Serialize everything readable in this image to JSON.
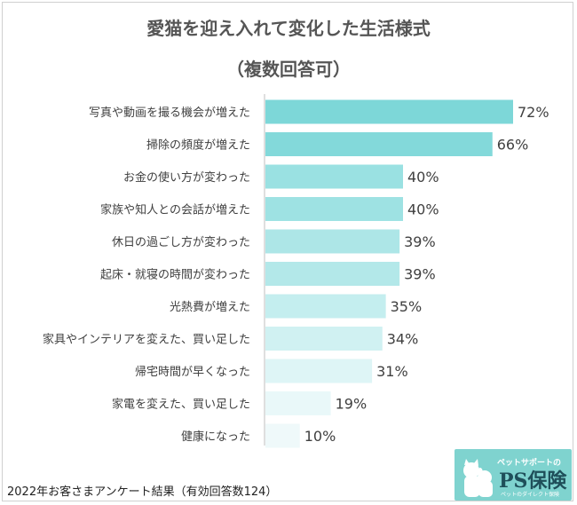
{
  "chart_data": {
    "type": "bar",
    "orientation": "horizontal",
    "title": "愛猫を迎え入れて変化した生活様式",
    "subtitle": "（複数回答可）",
    "categories": [
      "写真や動画を撮る機会が増えた",
      "掃除の頻度が増えた",
      "お金の使い方が変わった",
      "家族や知人との会話が増えた",
      "休日の過ごし方が変わった",
      "起床・就寝の時間が変わった",
      "光熱費が増えた",
      "家具やインテリアを変えた、買い足した",
      "帰宅時間が早くなった",
      "家電を変えた、買い足した",
      "健康になった"
    ],
    "values": [
      72,
      66,
      40,
      40,
      39,
      39,
      35,
      34,
      31,
      19,
      10
    ],
    "value_labels": [
      "72%",
      "66%",
      "40%",
      "40%",
      "39%",
      "39%",
      "35%",
      "34%",
      "31%",
      "19%",
      "10%"
    ],
    "unit": "%",
    "xlim": [
      0,
      80
    ],
    "grid": false,
    "legend": "none",
    "colors": [
      "#7dd7d8",
      "#83d9da",
      "#9ae1e2",
      "#9ee2e3",
      "#ade6e7",
      "#b3e8e9",
      "#c4eeef",
      "#d0f1f2",
      "#def5f6",
      "#e9f8f9",
      "#eff9fa"
    ]
  },
  "footnote": "2022年お客さまアンケート結果（有効回答数124）",
  "logo": {
    "tagline": "ペットサポートの",
    "brand": "PS保険",
    "sub": "ペットのダイレクト保険"
  }
}
